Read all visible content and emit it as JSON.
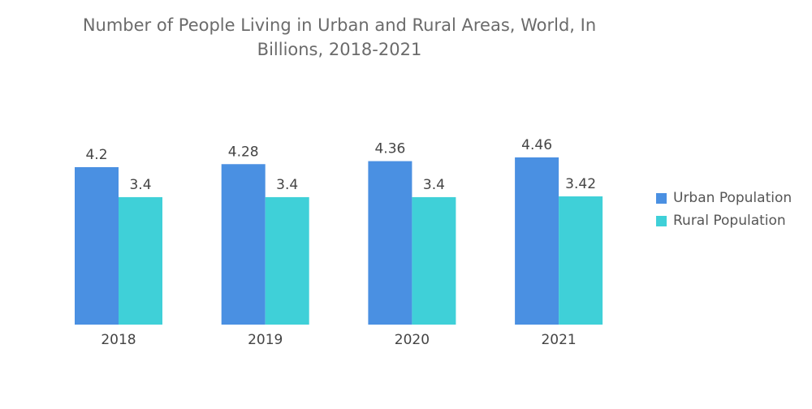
{
  "chart_data": {
    "type": "bar",
    "title_line1": "Number of People Living in Urban and Rural Areas, World, In",
    "title_line2": "Billions, 2018-2021",
    "categories": [
      "2018",
      "2019",
      "2020",
      "2021"
    ],
    "series": [
      {
        "name": "Urban Population",
        "color": "#4a90e2",
        "values": [
          4.2,
          4.28,
          4.36,
          4.46
        ],
        "labels": [
          "4.2",
          "4.28",
          "4.36",
          "4.46"
        ]
      },
      {
        "name": "Rural Population",
        "color": "#3fd0d8",
        "values": [
          3.4,
          3.4,
          3.4,
          3.42
        ],
        "labels": [
          "3.4",
          "3.4",
          "3.4",
          "3.42"
        ]
      }
    ],
    "xlabel": "",
    "ylabel": "",
    "ylim": [
      0,
      4.46
    ],
    "grid": false,
    "legend_position": "right"
  }
}
